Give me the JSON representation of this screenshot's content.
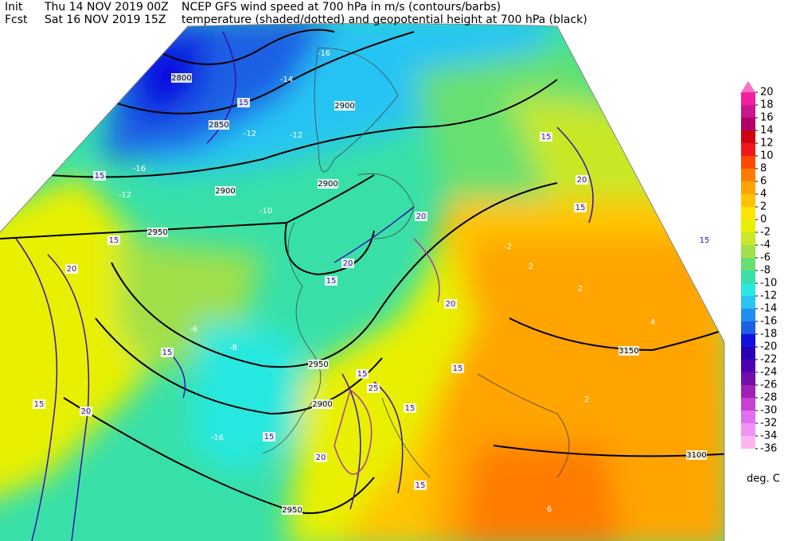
{
  "header": {
    "line1": [
      "Init",
      "Thu 14 NOV 2019 00Z",
      "NCEP GFS wind speed at 700 hPa in m/s (contours/barbs)"
    ],
    "line2": [
      "Fcst",
      "Sat 16 NOV 2019 15Z",
      "temperature (shaded/dotted) and geopotential height at 700 hPa (black)"
    ]
  },
  "colorbar": {
    "levels": [
      20,
      18,
      16,
      14,
      12,
      10,
      8,
      6,
      4,
      2,
      0,
      -2,
      -4,
      -6,
      -8,
      -10,
      -12,
      -14,
      -16,
      -18,
      -20,
      -22,
      -24,
      -26,
      -28,
      -30,
      -32,
      -34,
      -36
    ],
    "colors": [
      "#ff6ec8",
      "#f020a0",
      "#c8188c",
      "#b00068",
      "#d00010",
      "#f01818",
      "#ff4800",
      "#ff7c00",
      "#ffa400",
      "#ffc400",
      "#ffe400",
      "#e8f000",
      "#c8e828",
      "#a0e048",
      "#68e070",
      "#38e0a8",
      "#28e8e0",
      "#28c4f4",
      "#2090f0",
      "#1c60e4",
      "#1010e0",
      "#2800b4",
      "#5000b0",
      "#7010a8",
      "#a020b4",
      "#c840d4",
      "#e070f0",
      "#f094f4",
      "#ffb4f4"
    ],
    "unit": "deg. C"
  },
  "map_labels": [
    "2800",
    "2850",
    "2900",
    "2900",
    "2900",
    "2950",
    "2950",
    "2900",
    "2950",
    "3150",
    "3100",
    "15",
    "15",
    "15",
    "20",
    "15",
    "20",
    "15",
    "20",
    "20",
    "15",
    "15",
    "20",
    "15",
    "15",
    "20",
    "15",
    "25",
    "15",
    "20",
    "15",
    "15",
    "15",
    "-16",
    "-14",
    "-12",
    "-12",
    "-16",
    "-12",
    "-10",
    "-8",
    "-6",
    "-16",
    "2",
    "2",
    "4",
    "2",
    "6",
    "-2"
  ]
}
